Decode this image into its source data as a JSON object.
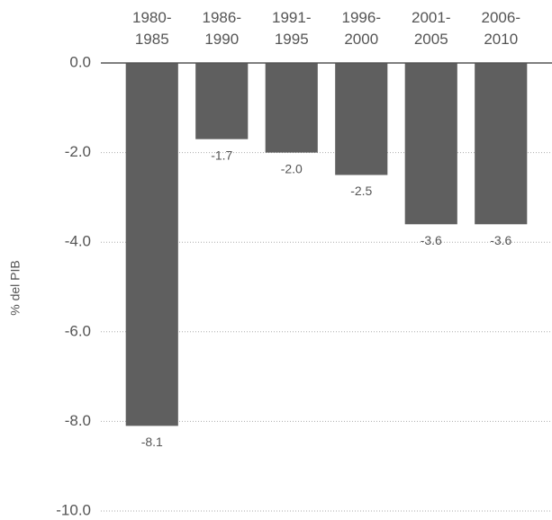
{
  "chart_data": {
    "type": "bar",
    "y_label": "% del PIB",
    "categories": [
      "1980-1985",
      "1986-1990",
      "1991-1995",
      "1996-2000",
      "2001-2005",
      "2006-2010"
    ],
    "values": [
      -8.1,
      -1.7,
      -2.0,
      -2.5,
      -3.6,
      -3.6
    ],
    "value_labels": [
      "-8.1",
      "-1.7",
      "-2.0",
      "-2.5",
      "-3.6",
      "-3.6"
    ],
    "color": "#5f5f5f",
    "ylim": [
      -10,
      0
    ],
    "yticks": [
      {
        "value": 0,
        "label": "0.0"
      },
      {
        "value": -2,
        "label": "-2.0"
      },
      {
        "value": -4,
        "label": "-4.0"
      },
      {
        "value": -6,
        "label": "-6.0"
      },
      {
        "value": -8,
        "label": "-8.0"
      },
      {
        "value": -10,
        "label": "-10.0"
      }
    ],
    "grid": true
  }
}
